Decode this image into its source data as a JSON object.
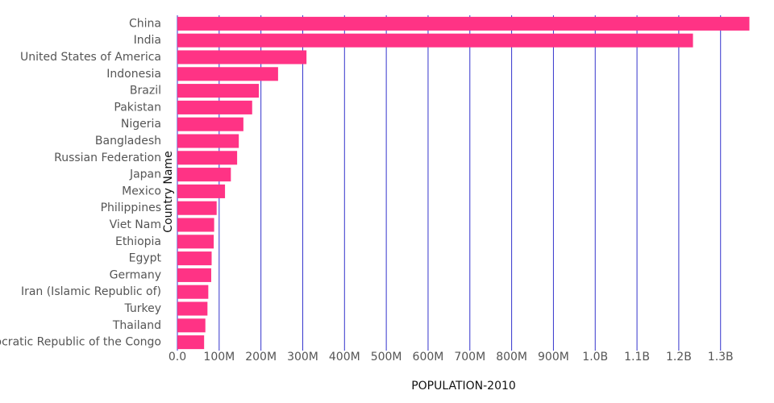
{
  "chart_data": {
    "type": "barh",
    "xlabel": "POPULATION-2010",
    "ylabel": "Country Name",
    "categories": [
      "China",
      "India",
      "United States of America",
      "Indonesia",
      "Brazil",
      "Pakistan",
      "Nigeria",
      "Bangladesh",
      "Russian Federation",
      "Japan",
      "Mexico",
      "Philippines",
      "Viet Nam",
      "Ethiopia",
      "Egypt",
      "Germany",
      "Iran (Islamic Republic of)",
      "Turkey",
      "Thailand",
      "Democratic Republic of the Congo"
    ],
    "values": [
      1369000000,
      1234000000,
      309000000,
      241000000,
      195000000,
      179000000,
      158000000,
      147000000,
      143000000,
      128000000,
      114000000,
      94000000,
      88000000,
      87000000,
      82000000,
      81000000,
      74000000,
      72000000,
      67000000,
      64000000
    ],
    "color": "#ff3385",
    "grid_color": "#3333cc",
    "grid": true,
    "xlim": [
      0,
      1370000000
    ],
    "xticks": [
      {
        "value": 0,
        "label": "0.0"
      },
      {
        "value": 100000000,
        "label": "100M"
      },
      {
        "value": 200000000,
        "label": "200M"
      },
      {
        "value": 300000000,
        "label": "300M"
      },
      {
        "value": 400000000,
        "label": "400M"
      },
      {
        "value": 500000000,
        "label": "500M"
      },
      {
        "value": 600000000,
        "label": "600M"
      },
      {
        "value": 700000000,
        "label": "700M"
      },
      {
        "value": 800000000,
        "label": "800M"
      },
      {
        "value": 900000000,
        "label": "900M"
      },
      {
        "value": 1000000000,
        "label": "1.0B"
      },
      {
        "value": 1100000000,
        "label": "1.1B"
      },
      {
        "value": 1200000000,
        "label": "1.2B"
      },
      {
        "value": 1300000000,
        "label": "1.3B"
      }
    ]
  }
}
